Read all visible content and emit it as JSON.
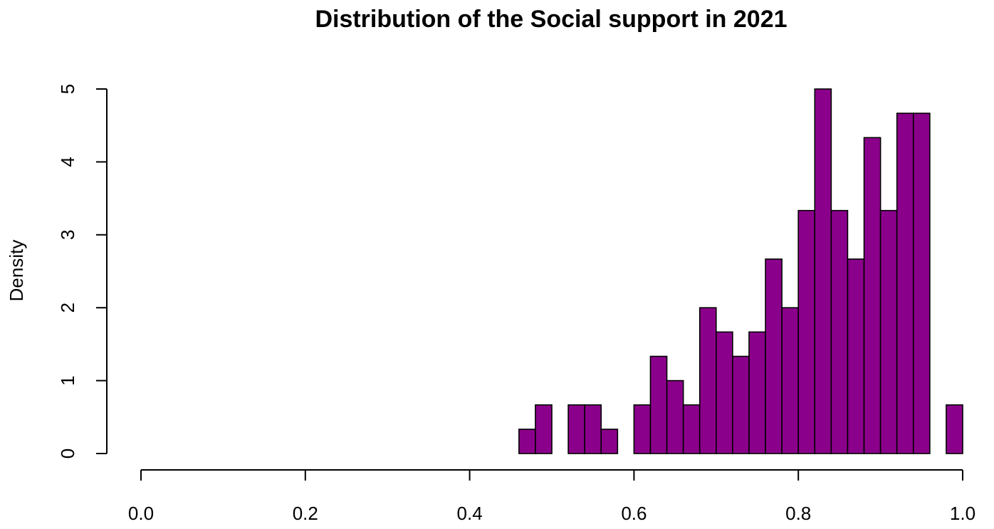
{
  "chart_data": {
    "type": "bar",
    "subtype": "histogram",
    "title": "Distribution of the Social support in 2021",
    "xlabel": "",
    "ylabel": "Density",
    "xlim": [
      0.0,
      1.0
    ],
    "ylim": [
      0,
      5
    ],
    "x_ticks": [
      "0.0",
      "0.2",
      "0.4",
      "0.6",
      "0.8",
      "1.0"
    ],
    "y_ticks": [
      "0",
      "1",
      "2",
      "3",
      "4",
      "5"
    ],
    "bin_width": 0.02,
    "bins": [
      {
        "start": 0.46,
        "end": 0.48,
        "density": 0.333
      },
      {
        "start": 0.48,
        "end": 0.5,
        "density": 0.667
      },
      {
        "start": 0.5,
        "end": 0.52,
        "density": 0.0
      },
      {
        "start": 0.52,
        "end": 0.54,
        "density": 0.667
      },
      {
        "start": 0.54,
        "end": 0.56,
        "density": 0.667
      },
      {
        "start": 0.56,
        "end": 0.58,
        "density": 0.333
      },
      {
        "start": 0.58,
        "end": 0.6,
        "density": 0.0
      },
      {
        "start": 0.6,
        "end": 0.62,
        "density": 0.667
      },
      {
        "start": 0.62,
        "end": 0.64,
        "density": 1.333
      },
      {
        "start": 0.64,
        "end": 0.66,
        "density": 1.0
      },
      {
        "start": 0.66,
        "end": 0.68,
        "density": 0.667
      },
      {
        "start": 0.68,
        "end": 0.7,
        "density": 2.0
      },
      {
        "start": 0.7,
        "end": 0.72,
        "density": 1.667
      },
      {
        "start": 0.72,
        "end": 0.74,
        "density": 1.333
      },
      {
        "start": 0.74,
        "end": 0.76,
        "density": 1.667
      },
      {
        "start": 0.76,
        "end": 0.78,
        "density": 2.667
      },
      {
        "start": 0.78,
        "end": 0.8,
        "density": 2.0
      },
      {
        "start": 0.8,
        "end": 0.82,
        "density": 3.333
      },
      {
        "start": 0.82,
        "end": 0.84,
        "density": 5.0
      },
      {
        "start": 0.84,
        "end": 0.86,
        "density": 3.333
      },
      {
        "start": 0.86,
        "end": 0.88,
        "density": 2.667
      },
      {
        "start": 0.88,
        "end": 0.9,
        "density": 4.333
      },
      {
        "start": 0.9,
        "end": 0.92,
        "density": 3.333
      },
      {
        "start": 0.92,
        "end": 0.94,
        "density": 4.667
      },
      {
        "start": 0.94,
        "end": 0.96,
        "density": 4.667
      },
      {
        "start": 0.96,
        "end": 0.98,
        "density": 0.0
      },
      {
        "start": 0.98,
        "end": 1.0,
        "density": 0.667
      }
    ],
    "bar_color": "#8B008B",
    "bar_edge_color": "#000000",
    "grid": false,
    "legend": "none"
  }
}
